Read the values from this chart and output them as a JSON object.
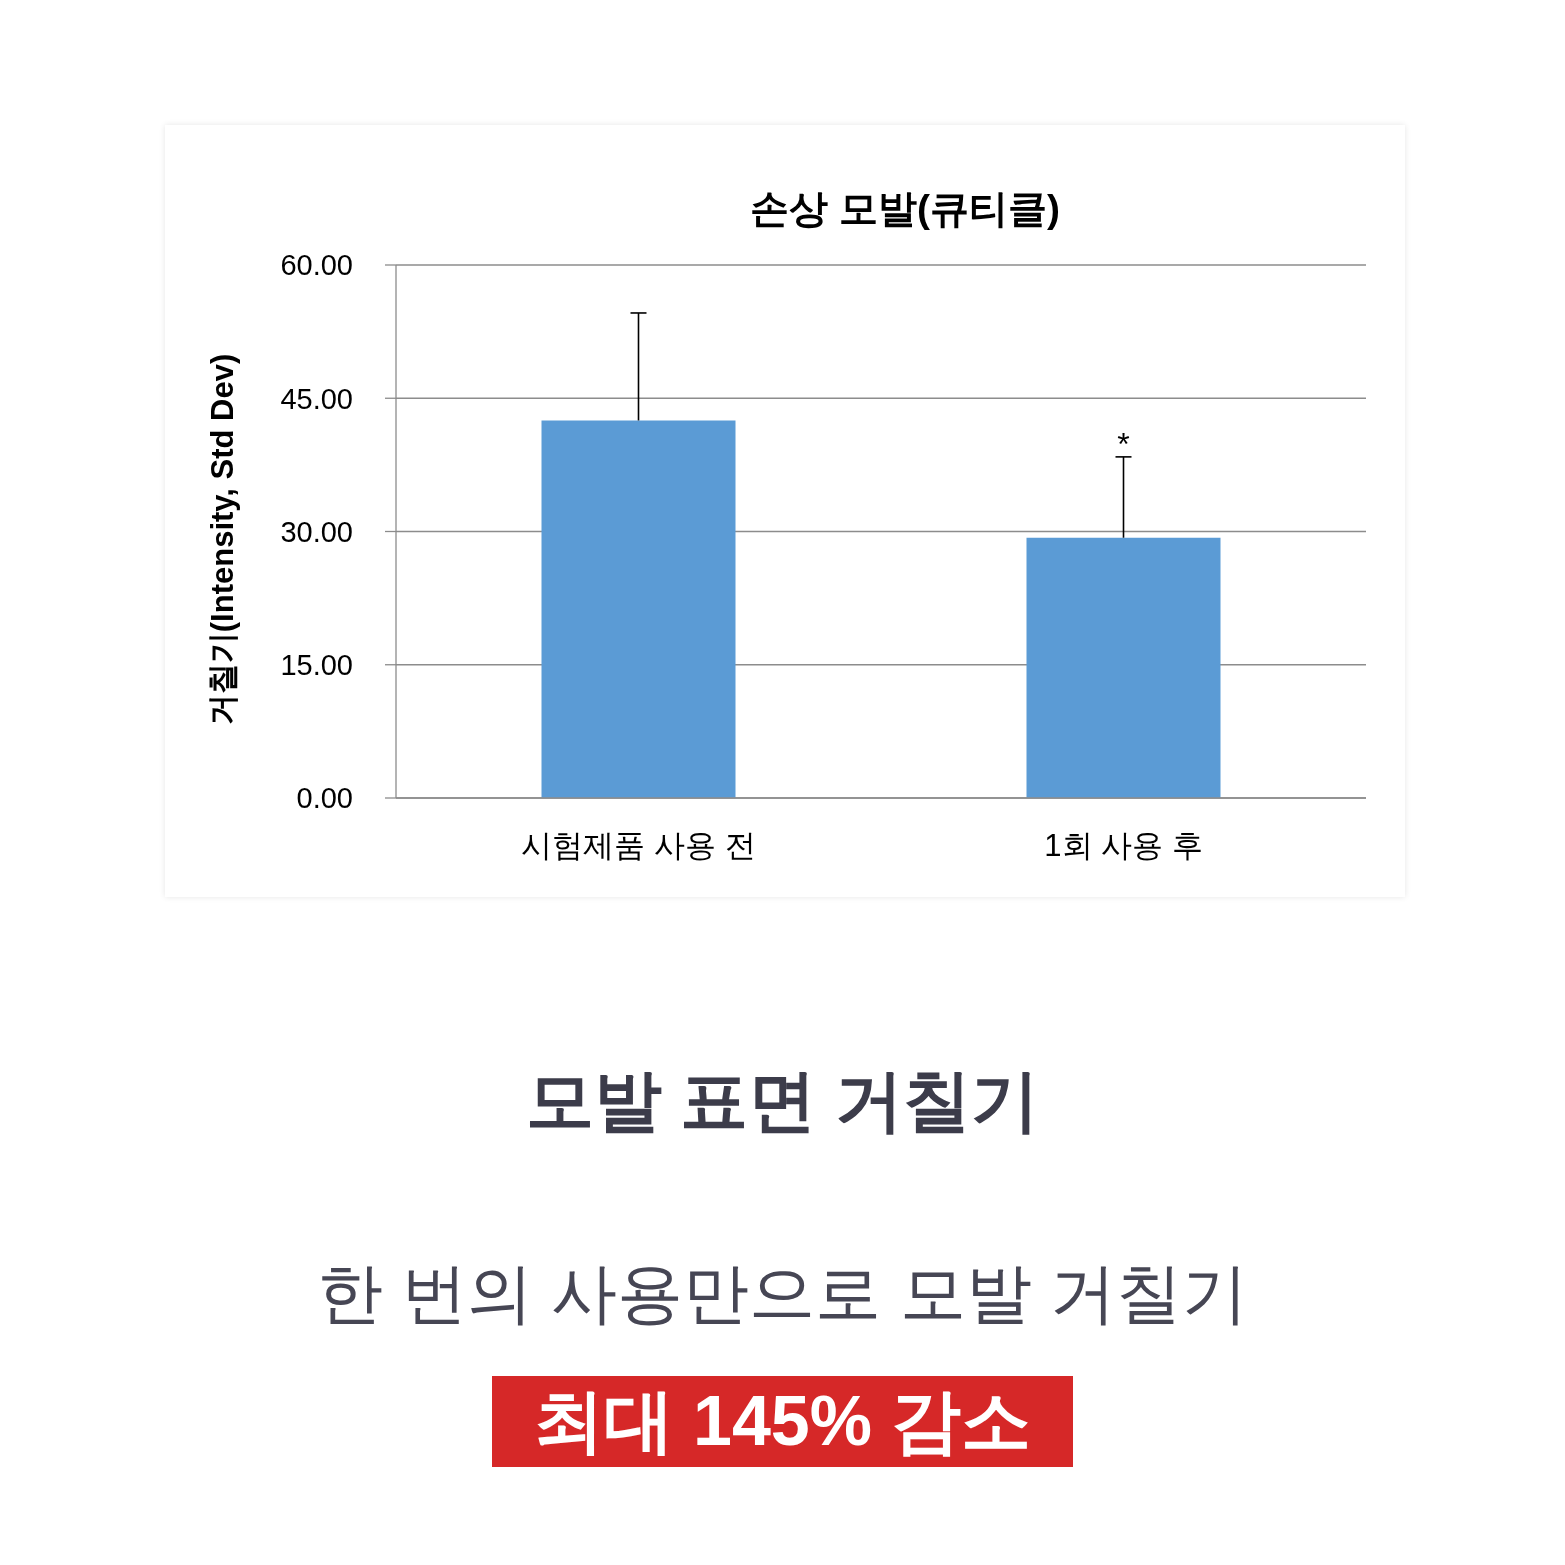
{
  "chart_data": {
    "type": "bar",
    "title": "손상 모발(큐티클)",
    "ylabel": "거칠기(Intensity, Std Dev)",
    "categories": [
      "시험제품 사용 전",
      "1회 사용 후"
    ],
    "values": [
      42.5,
      29.3
    ],
    "color": "#5b9bd5",
    "errors": [
      [
        42.5,
        54.6
      ],
      [
        29.3,
        38.4
      ]
    ],
    "ylim": [
      0,
      60
    ],
    "yticks": [
      {
        "value": 0,
        "label": "0.00"
      },
      {
        "value": 15,
        "label": "15.00"
      },
      {
        "value": 30,
        "label": "30.00"
      },
      {
        "value": 45,
        "label": "45.00"
      },
      {
        "value": 60,
        "label": "60.00"
      }
    ],
    "grid": "y",
    "annotations": [
      {
        "text": "*",
        "x": "1회 사용 후",
        "y": 38.4
      },
      "모발 표면 거칠기",
      "한 번의 사용만으로 모발 거칠기",
      "최대 145% 감소"
    ]
  }
}
